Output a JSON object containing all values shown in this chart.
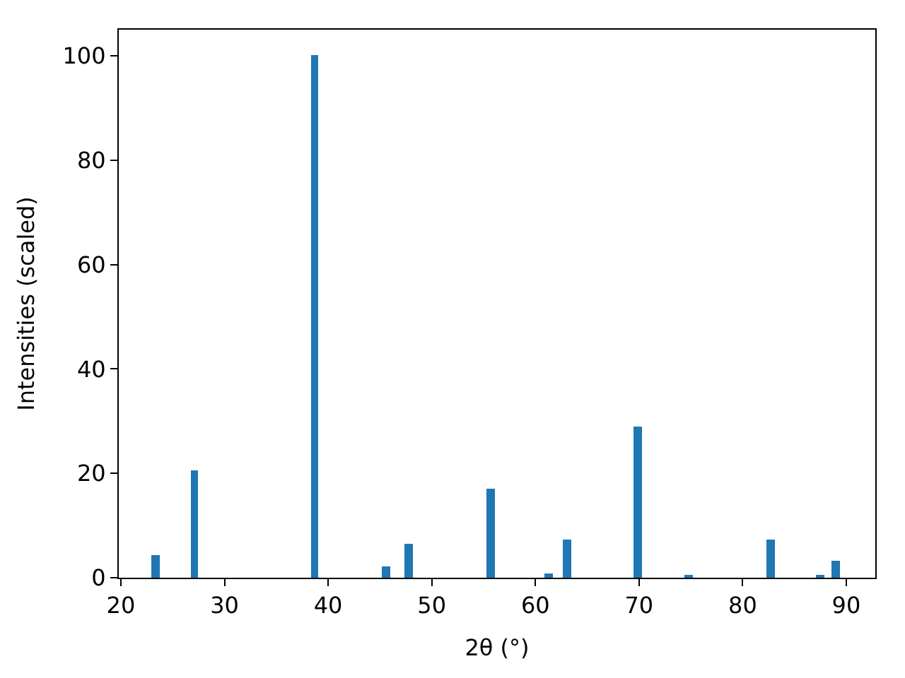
{
  "chart_data": {
    "type": "bar",
    "xlabel": "2θ (°)",
    "ylabel": "Intensities (scaled)",
    "x": [
      23.4,
      27.1,
      38.7,
      45.6,
      47.8,
      55.7,
      61.3,
      63.1,
      69.9,
      74.8,
      82.7,
      87.5,
      89.0
    ],
    "series": [
      {
        "color": "#1f77b4",
        "values": [
          4.3,
          20.6,
          100,
          2.2,
          6.5,
          17.1,
          0.8,
          7.3,
          29.0,
          0.5,
          7.3,
          0.5,
          3.2
        ]
      }
    ],
    "xlim": [
      19.8,
      92.8
    ],
    "xticks": [
      20,
      30,
      40,
      50,
      60,
      70,
      80,
      90
    ],
    "ylim": [
      0,
      105
    ],
    "yticks": [
      0,
      20,
      40,
      60,
      80,
      100
    ]
  }
}
